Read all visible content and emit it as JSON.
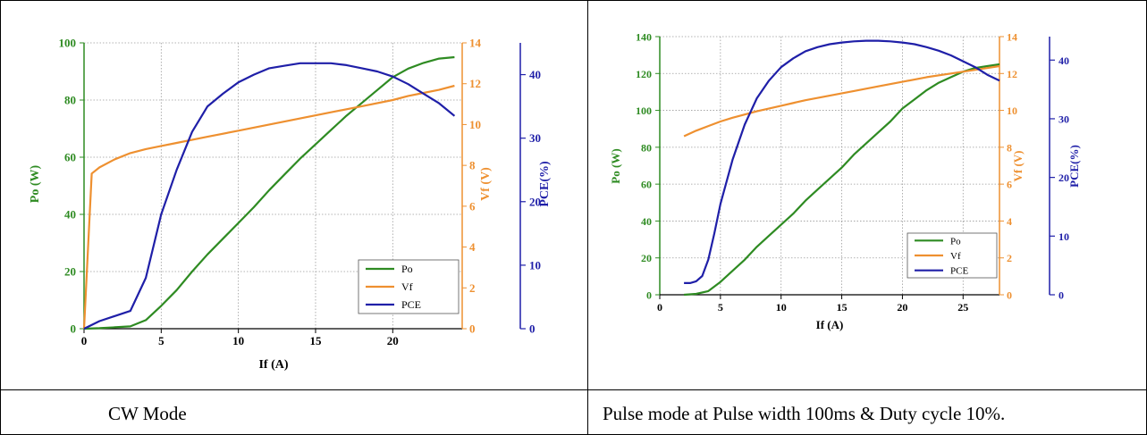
{
  "captions": {
    "left": "CW Mode",
    "right": "Pulse mode at Pulse width 100ms & Duty cycle 10%."
  },
  "colors": {
    "po": "#2e8b22",
    "vf": "#ee9030",
    "pce": "#1f1fa8",
    "grid": "#9a9a9a"
  },
  "chart_data": [
    {
      "type": "line",
      "xlabel": "If (A)",
      "x_ticks": [
        0,
        5,
        10,
        15,
        20
      ],
      "xlim": [
        0,
        24.5
      ],
      "grid": true,
      "legend_position": "bottom-right",
      "axes": {
        "po": {
          "label": "Po (W)",
          "lim": [
            0,
            100
          ],
          "ticks": [
            0,
            20,
            40,
            60,
            80,
            100
          ]
        },
        "vf": {
          "label": "Vf (V)",
          "lim": [
            0,
            14
          ],
          "ticks": [
            0,
            2,
            4,
            6,
            8,
            10,
            12,
            14
          ]
        },
        "pce": {
          "label": "PCE(%)",
          "lim": [
            0,
            45
          ],
          "ticks": [
            0,
            10,
            20,
            30,
            40
          ]
        }
      },
      "series": [
        {
          "name": "Po",
          "axis": "po",
          "x": [
            0,
            1,
            2,
            3,
            4,
            5,
            6,
            7,
            8,
            9,
            10,
            11,
            12,
            13,
            14,
            15,
            16,
            17,
            18,
            19,
            20,
            21,
            22,
            23,
            24
          ],
          "y": [
            0,
            0.2,
            0.5,
            0.8,
            3,
            8,
            13.5,
            20,
            26,
            31.5,
            37,
            42.5,
            48.5,
            54,
            59.5,
            64.5,
            69.5,
            74.5,
            79,
            83.5,
            88,
            91,
            93,
            94.5,
            95
          ]
        },
        {
          "name": "Vf",
          "axis": "vf",
          "x": [
            0,
            0.5,
            1,
            2,
            3,
            4,
            5,
            6,
            8,
            10,
            12,
            14,
            16,
            18,
            20,
            21,
            22,
            23,
            24
          ],
          "y": [
            0,
            7.6,
            7.9,
            8.3,
            8.6,
            8.8,
            8.95,
            9.1,
            9.4,
            9.7,
            10.0,
            10.3,
            10.6,
            10.9,
            11.2,
            11.4,
            11.55,
            11.7,
            11.9
          ]
        },
        {
          "name": "PCE",
          "axis": "pce",
          "x": [
            0,
            1,
            2,
            3,
            4,
            5,
            6,
            7,
            8,
            9,
            10,
            11,
            12,
            13,
            14,
            15,
            16,
            17,
            18,
            19,
            20,
            21,
            22,
            23,
            24
          ],
          "y": [
            0,
            1.2,
            2,
            2.8,
            8,
            18,
            25,
            31,
            35,
            37,
            38.8,
            40,
            41,
            41.4,
            41.8,
            41.8,
            41.8,
            41.5,
            41,
            40.5,
            39.7,
            38.5,
            37,
            35.5,
            33.5
          ]
        }
      ]
    },
    {
      "type": "line",
      "xlabel": "If (A)",
      "x_ticks": [
        0,
        5,
        10,
        15,
        20,
        25
      ],
      "xlim": [
        0,
        28
      ],
      "grid": true,
      "legend_position": "bottom-right",
      "axes": {
        "po": {
          "label": "Po (W)",
          "lim": [
            0,
            140
          ],
          "ticks": [
            0,
            20,
            40,
            60,
            80,
            100,
            120,
            140
          ]
        },
        "vf": {
          "label": "Vf (V)",
          "lim": [
            0,
            14
          ],
          "ticks": [
            0,
            2,
            4,
            6,
            8,
            10,
            12,
            14
          ]
        },
        "pce": {
          "label": "PCE(%)",
          "lim": [
            0,
            44
          ],
          "ticks": [
            0,
            10,
            20,
            30,
            40
          ]
        }
      },
      "series": [
        {
          "name": "Po",
          "axis": "po",
          "x": [
            2,
            3,
            4,
            5,
            6,
            7,
            8,
            9,
            10,
            11,
            12,
            13,
            14,
            15,
            16,
            17,
            18,
            19,
            20,
            21,
            22,
            23,
            24,
            25,
            26,
            27,
            28
          ],
          "y": [
            0,
            0.5,
            2,
            7,
            13,
            19,
            26,
            32,
            38,
            44,
            51,
            57,
            63,
            69,
            76,
            82,
            88,
            94,
            101,
            106,
            111,
            115,
            118,
            121,
            123,
            124,
            125
          ]
        },
        {
          "name": "Vf",
          "axis": "vf",
          "x": [
            2,
            3,
            4,
            5,
            6,
            8,
            10,
            12,
            14,
            16,
            18,
            20,
            22,
            24,
            26,
            28
          ],
          "y": [
            8.6,
            8.9,
            9.15,
            9.4,
            9.6,
            9.95,
            10.25,
            10.55,
            10.8,
            11.05,
            11.3,
            11.55,
            11.8,
            12.0,
            12.2,
            12.4
          ]
        },
        {
          "name": "PCE",
          "axis": "pce",
          "x": [
            2,
            2.5,
            3,
            3.5,
            4,
            4.5,
            5,
            6,
            7,
            8,
            9,
            10,
            11,
            12,
            13,
            14,
            15,
            16,
            17,
            18,
            19,
            20,
            21,
            22,
            23,
            24,
            25,
            26,
            27,
            28
          ],
          "y": [
            2,
            2,
            2.3,
            3.2,
            6,
            10.5,
            15.5,
            23,
            29,
            33.5,
            36.5,
            38.8,
            40.3,
            41.5,
            42.2,
            42.7,
            43,
            43.2,
            43.3,
            43.3,
            43.2,
            43,
            42.7,
            42.2,
            41.6,
            40.8,
            39.8,
            38.8,
            37.5,
            36.5
          ]
        }
      ]
    }
  ]
}
